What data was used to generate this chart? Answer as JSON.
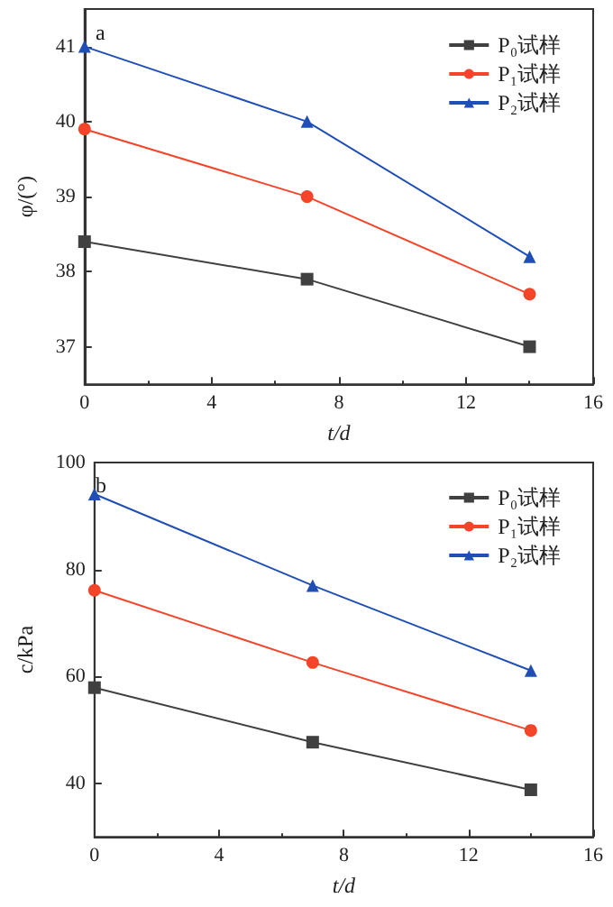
{
  "chart_data": [
    {
      "type": "line",
      "title": "a",
      "xlabel": "t/d",
      "ylabel": "φ/(°)",
      "x": [
        0,
        7,
        14
      ],
      "xlim": [
        0,
        16
      ],
      "xticks": [
        0,
        4,
        8,
        12,
        16
      ],
      "ylim": [
        36.5,
        41.5
      ],
      "yticks": [
        37,
        38,
        39,
        40,
        41
      ],
      "grid": false,
      "legend": "top right",
      "series": [
        {
          "name": "P₀试样",
          "color": "#404040",
          "marker": "square",
          "values": [
            38.4,
            37.9,
            37.0
          ]
        },
        {
          "name": "P₁试样",
          "color": "#f4452a",
          "marker": "circle",
          "values": [
            39.9,
            39.0,
            37.7
          ]
        },
        {
          "name": "P₂试样",
          "color": "#1f4fb4",
          "marker": "triangle",
          "values": [
            41.0,
            40.0,
            38.2
          ]
        }
      ]
    },
    {
      "type": "line",
      "title": "b",
      "xlabel": "t/d",
      "ylabel": "c/kPa",
      "x": [
        0,
        7,
        14
      ],
      "xlim": [
        0,
        16
      ],
      "xticks": [
        0,
        4,
        8,
        12,
        16
      ],
      "ylim": [
        30,
        100
      ],
      "yticks": [
        40,
        60,
        80,
        100
      ],
      "grid": false,
      "legend": "top right",
      "series": [
        {
          "name": "P₀试样",
          "color": "#404040",
          "marker": "square",
          "values": [
            57.9,
            47.7,
            38.8
          ]
        },
        {
          "name": "P₁试样",
          "color": "#f4452a",
          "marker": "circle",
          "values": [
            76.1,
            62.6,
            49.9
          ]
        },
        {
          "name": "P₂试样",
          "color": "#1f4fb4",
          "marker": "triangle",
          "values": [
            94.1,
            77.0,
            61.1
          ]
        }
      ]
    }
  ]
}
